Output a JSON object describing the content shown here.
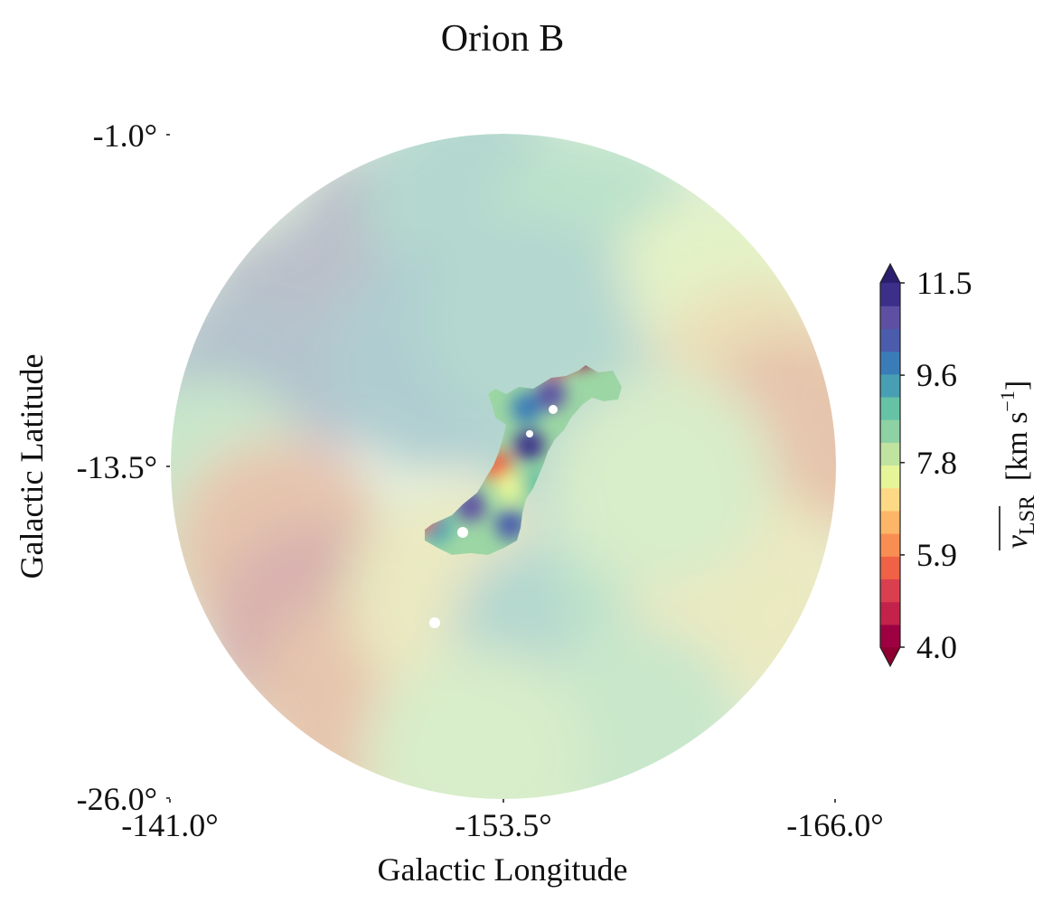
{
  "chart_data": {
    "type": "heatmap",
    "title": "Orion B",
    "xlabel": "Galactic Longitude",
    "ylabel": "Galactic Latitude",
    "x_ticks": [
      "-141.0°",
      "-153.5°",
      "-166.0°"
    ],
    "y_ticks": [
      "-1.0°",
      "-13.5°",
      "-26.0°"
    ],
    "xlim": [
      -141.0,
      -166.0
    ],
    "ylim": [
      -26.0,
      -1.0
    ],
    "footprint": "circular region centered at (-153.5°, -13.5°), radius ~12.5°",
    "colormap": "Spectral",
    "colorbar": {
      "label_symbol": "v",
      "label_subscript": "LSR",
      "label_units": "[km s",
      "label_units_sup": "−1",
      "label_units_close": "]",
      "tick_labels": [
        "4.0",
        "5.9",
        "7.8",
        "9.6",
        "11.5"
      ],
      "range": [
        4.0,
        11.5
      ],
      "extend": "both",
      "colors": [
        "#9e0142",
        "#c3234a",
        "#da3f4f",
        "#ef6245",
        "#f98e52",
        "#fdb667",
        "#fdd985",
        "#e6f598",
        "#c0e4a0",
        "#8ed1a4",
        "#66c2a5",
        "#489fb3",
        "#3a7cb8",
        "#4c5cac",
        "#5e4fa2",
        "#3b2f8a"
      ]
    },
    "background_field": {
      "description": "faint (low-opacity) velocity field filling the circle",
      "regions": [
        {
          "l": -149.5,
          "b": -5.5,
          "v": 11.0
        },
        {
          "l": -146.0,
          "b": -8.5,
          "v": 10.8
        },
        {
          "l": -144.0,
          "b": -11.0,
          "v": 10.2
        },
        {
          "l": -152.5,
          "b": -3.5,
          "v": 9.6
        },
        {
          "l": -157.0,
          "b": -5.0,
          "v": 8.8
        },
        {
          "l": -161.5,
          "b": -7.5,
          "v": 7.4
        },
        {
          "l": -163.0,
          "b": -10.5,
          "v": 6.6
        },
        {
          "l": -164.5,
          "b": -12.5,
          "v": 5.8
        },
        {
          "l": -142.5,
          "b": -14.5,
          "v": 8.4
        },
        {
          "l": -145.0,
          "b": -16.5,
          "v": 5.5
        },
        {
          "l": -146.5,
          "b": -19.5,
          "v": 4.9
        },
        {
          "l": -148.5,
          "b": -22.5,
          "v": 5.7
        },
        {
          "l": -152.0,
          "b": -18.5,
          "v": 7.2
        },
        {
          "l": -155.5,
          "b": -20.0,
          "v": 9.4
        },
        {
          "l": -159.5,
          "b": -17.0,
          "v": 9.0
        },
        {
          "l": -162.5,
          "b": -18.5,
          "v": 7.0
        },
        {
          "l": -158.5,
          "b": -23.5,
          "v": 8.6
        },
        {
          "l": -152.5,
          "b": -24.5,
          "v": 7.8
        },
        {
          "l": -156.0,
          "b": -11.5,
          "v": 9.2
        },
        {
          "l": -159.5,
          "b": -14.0,
          "v": 7.9
        },
        {
          "l": -151.0,
          "b": -9.5,
          "v": 9.9
        },
        {
          "l": -154.5,
          "b": -8.0,
          "v": 9.5
        }
      ]
    },
    "highlighted_region": {
      "description": "Orion B cloud, full-opacity velocity contours",
      "clumps": [
        {
          "l": -156.5,
          "b": -9.2,
          "v": 4.3
        },
        {
          "l": -155.5,
          "b": -9.5,
          "v": 5.0
        },
        {
          "l": -157.2,
          "b": -8.7,
          "v": 11.3
        },
        {
          "l": -158.3,
          "b": -9.0,
          "v": 11.2
        },
        {
          "l": -154.7,
          "b": -9.0,
          "v": 11.0
        },
        {
          "l": -155.3,
          "b": -10.8,
          "v": 10.9
        },
        {
          "l": -154.4,
          "b": -11.3,
          "v": 9.9
        },
        {
          "l": -154.5,
          "b": -12.7,
          "v": 11.1
        },
        {
          "l": -153.3,
          "b": -13.5,
          "v": 5.6
        },
        {
          "l": -153.8,
          "b": -14.3,
          "v": 7.6
        },
        {
          "l": -154.8,
          "b": -14.2,
          "v": 9.0
        },
        {
          "l": -152.3,
          "b": -15.0,
          "v": 10.9
        },
        {
          "l": -153.8,
          "b": -15.7,
          "v": 10.4
        },
        {
          "l": -151.0,
          "b": -15.8,
          "v": 9.4
        },
        {
          "l": -150.4,
          "b": -15.4,
          "v": 5.8
        }
      ]
    }
  }
}
